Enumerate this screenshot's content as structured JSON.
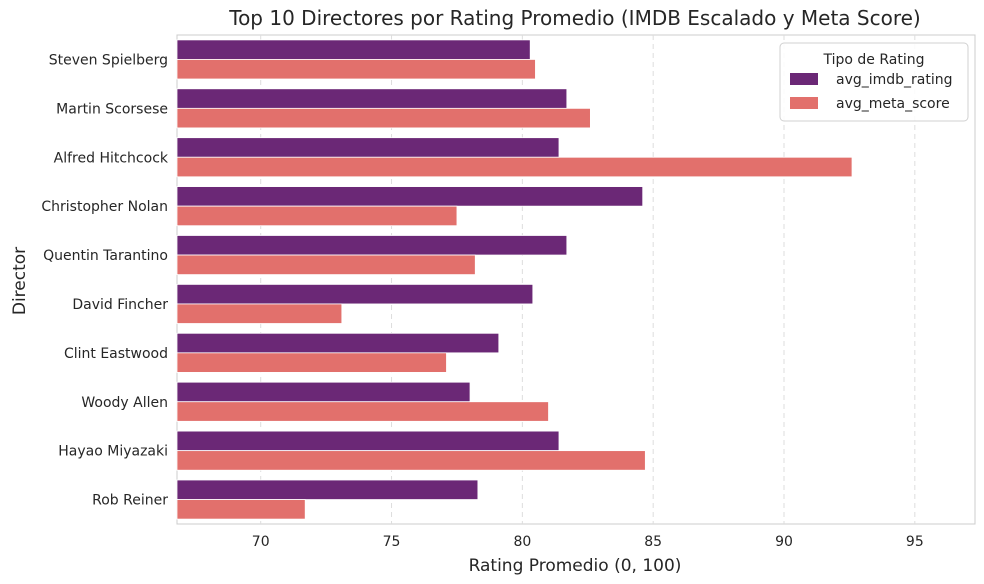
{
  "chart_data": {
    "type": "bar",
    "orientation": "horizontal",
    "title": "Top 10 Directores por Rating Promedio (IMDB Escalado y Meta Score)",
    "xlabel": "Rating Promedio (0, 100)",
    "ylabel": "Director",
    "xlim": [
      66.8,
      97.3
    ],
    "xticks": [
      70,
      75,
      80,
      85,
      90,
      95
    ],
    "grid": "x-dashed",
    "categories": [
      "Steven Spielberg",
      "Martin Scorsese",
      "Alfred Hitchcock",
      "Christopher Nolan",
      "Quentin Tarantino",
      "David Fincher",
      "Clint Eastwood",
      "Woody Allen",
      "Hayao Miyazaki",
      "Rob Reiner"
    ],
    "series": [
      {
        "name": "avg_imdb_rating",
        "color": "#6b2876",
        "values": [
          80.3,
          81.7,
          81.4,
          84.6,
          81.7,
          80.4,
          79.1,
          78.0,
          81.4,
          78.3
        ]
      },
      {
        "name": "avg_meta_score",
        "color": "#e2706c",
        "values": [
          80.5,
          82.6,
          92.6,
          77.5,
          78.2,
          73.1,
          77.1,
          81.0,
          84.7,
          71.7
        ]
      }
    ],
    "legend": {
      "title": "Tipo de Rating",
      "position": "top-right"
    }
  }
}
